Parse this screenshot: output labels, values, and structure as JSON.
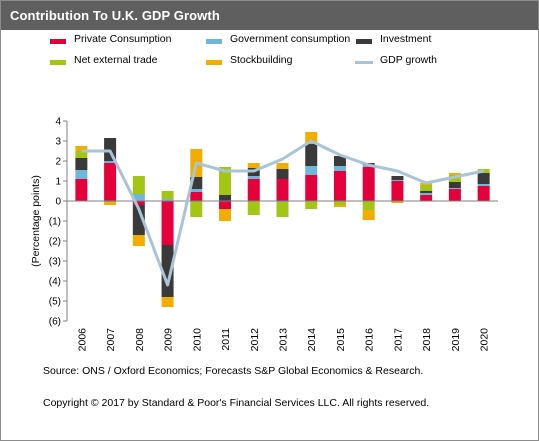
{
  "title": "Contribution To U.K. GDP Growth",
  "source": "Source: ONS / Oxford Economics; Forecasts S&P Global Economics & Research.",
  "copyright": "Copyright © 2017 by Standard & Poor's Financial Services LLC. All rights reserved.",
  "chart_data": {
    "type": "bar",
    "stacked": true,
    "ylabel": "(Percentage points)",
    "ylim": [
      -6,
      4
    ],
    "yticks": [
      "4",
      "3",
      "2",
      "1",
      "0",
      "(1)",
      "(2)",
      "(3)",
      "(4)",
      "(5)",
      "(6)"
    ],
    "grid": false,
    "categories": [
      "2006",
      "2007",
      "2008",
      "2009",
      "2010",
      "2011",
      "2012",
      "2013",
      "2014",
      "2015",
      "2016",
      "2017",
      "2018",
      "2019",
      "2020"
    ],
    "series": [
      {
        "name": "Private Consumption",
        "color": "#e4003b",
        "values": [
          1.1,
          1.9,
          -0.2,
          -2.2,
          0.45,
          -0.4,
          1.1,
          1.1,
          1.3,
          1.5,
          1.7,
          1.0,
          0.3,
          0.6,
          0.75
        ]
      },
      {
        "name": "Government consumption",
        "color": "#6fb7d9",
        "values": [
          0.45,
          0.1,
          0.35,
          0.1,
          0.15,
          0.0,
          0.15,
          -0.05,
          0.45,
          0.25,
          0.1,
          0.05,
          0.1,
          0.05,
          0.1
        ]
      },
      {
        "name": "Investment",
        "color": "#3a3a3a",
        "values": [
          0.6,
          1.15,
          -1.5,
          -2.6,
          0.6,
          0.3,
          0.4,
          0.5,
          1.1,
          0.5,
          0.1,
          0.2,
          0.1,
          0.3,
          0.55
        ]
      },
      {
        "name": "Net external trade",
        "color": "#a3c614",
        "values": [
          0.35,
          -0.05,
          0.9,
          0.4,
          -0.8,
          1.4,
          -0.7,
          -0.75,
          -0.4,
          -0.2,
          -0.45,
          0.0,
          0.3,
          0.35,
          0.2
        ]
      },
      {
        "name": "Stockbuilding",
        "color": "#f2ae00",
        "values": [
          0.25,
          -0.15,
          -0.55,
          -0.5,
          1.4,
          -0.6,
          0.25,
          0.3,
          0.6,
          -0.1,
          -0.5,
          -0.1,
          0.1,
          0.1,
          0.0
        ]
      }
    ],
    "line": {
      "name": "GDP growth",
      "color": "#a9c4d6",
      "values": [
        2.5,
        2.5,
        -0.4,
        -4.2,
        1.9,
        1.5,
        1.5,
        2.1,
        3.0,
        2.3,
        1.8,
        1.5,
        0.9,
        1.2,
        1.5
      ]
    },
    "legend": {
      "placement": "top",
      "columns": 3
    }
  }
}
